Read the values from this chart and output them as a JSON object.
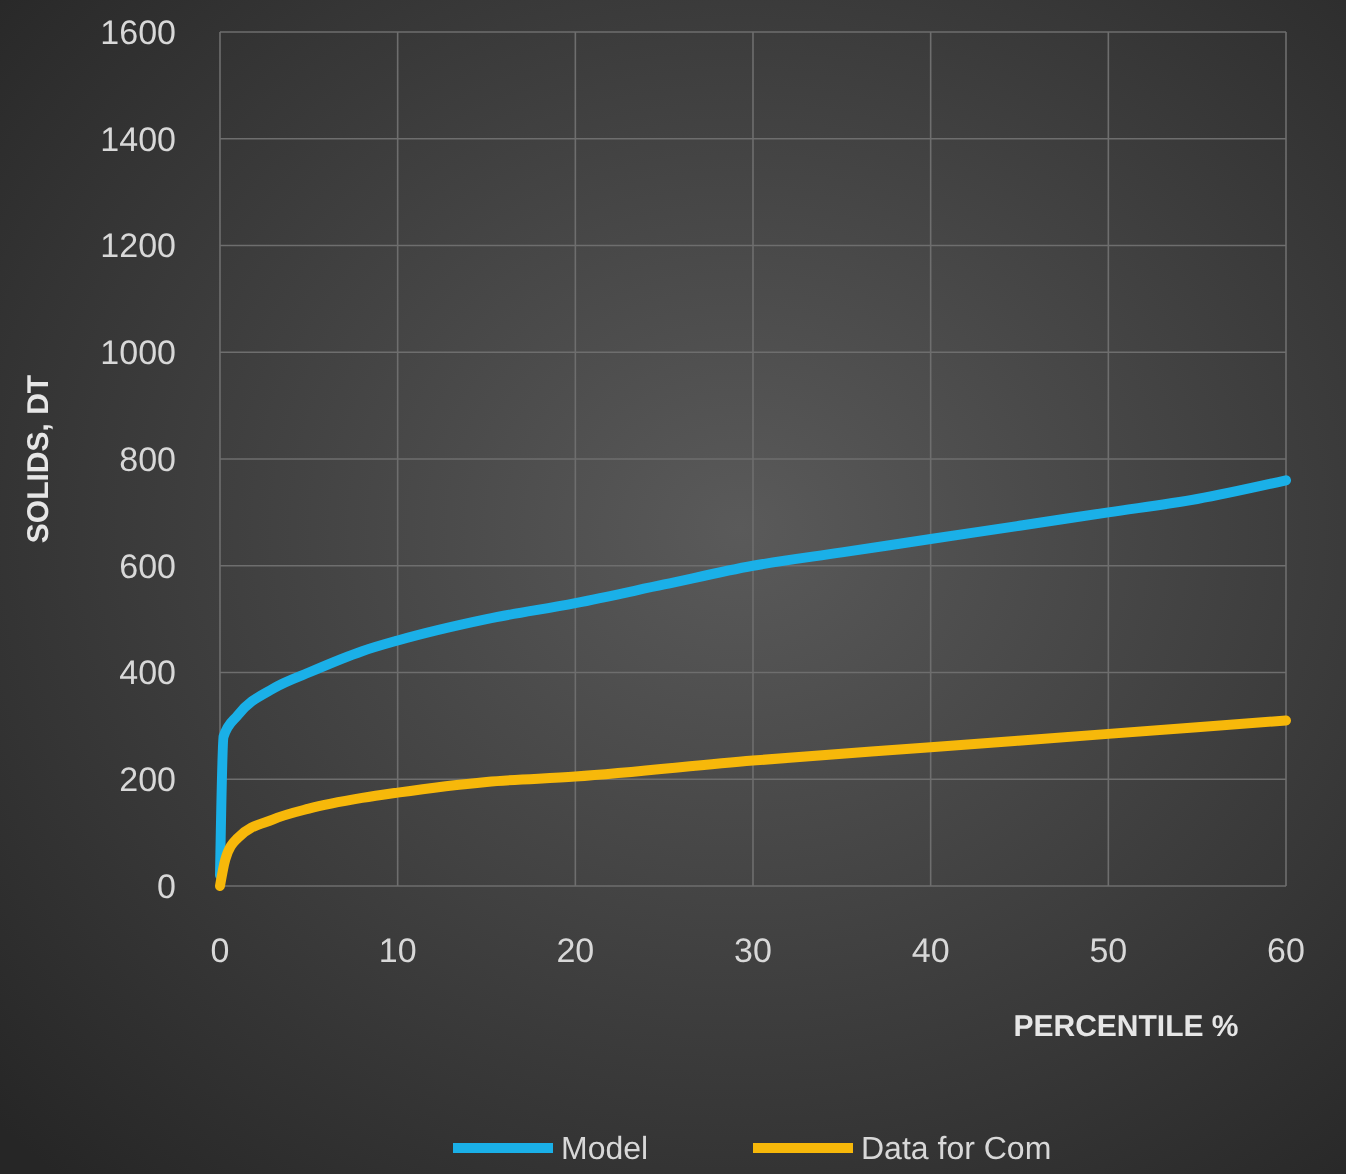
{
  "chart_data": {
    "type": "line",
    "xlabel": "PERCENTILE %",
    "ylabel": "SOLIDS, DT",
    "xlim": [
      0,
      60
    ],
    "ylim": [
      0,
      1600
    ],
    "xticks": [
      0,
      10,
      20,
      30,
      40,
      50,
      60
    ],
    "yticks": [
      0,
      200,
      400,
      600,
      800,
      1000,
      1200,
      1400,
      1600
    ],
    "grid": true,
    "legend": "bottom",
    "marker": "none",
    "line_style": "solid",
    "series": [
      {
        "name": "Model",
        "color": "#1ab0e8",
        "x": [
          0,
          0.2,
          1,
          3,
          5,
          8,
          10,
          15,
          20,
          25,
          30,
          35,
          40,
          45,
          50,
          55,
          60
        ],
        "values": [
          20,
          280,
          320,
          370,
          400,
          440,
          460,
          500,
          530,
          565,
          600,
          625,
          650,
          675,
          700,
          725,
          760
        ]
      },
      {
        "name": "Data for Com",
        "color": "#f7b80a",
        "x": [
          0,
          0.3,
          1,
          3,
          5,
          8,
          10,
          15,
          20,
          30,
          40,
          50,
          60
        ],
        "values": [
          0,
          50,
          90,
          125,
          145,
          165,
          175,
          195,
          205,
          235,
          260,
          285,
          310
        ]
      }
    ]
  }
}
